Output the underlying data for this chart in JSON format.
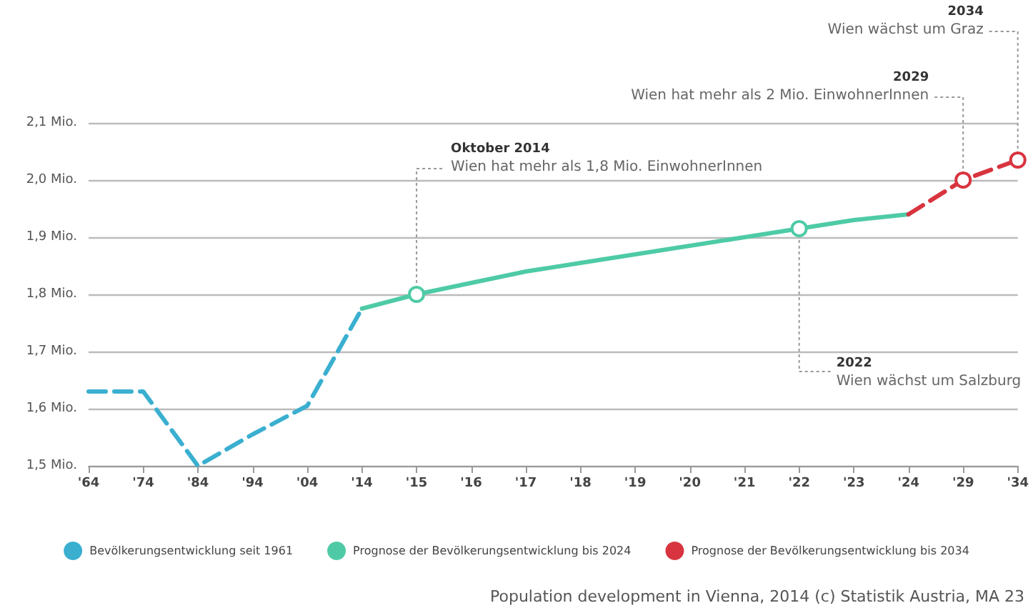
{
  "chart_data": {
    "type": "line",
    "categories": [
      "'64",
      "'74",
      "'84",
      "'94",
      "'04",
      "'14",
      "'15",
      "'16",
      "'17",
      "'18",
      "'19",
      "'20",
      "'21",
      "'22",
      "'23",
      "'24",
      "'29",
      "'34"
    ],
    "series": [
      {
        "name": "Bevölkerungsentwicklung seit 1961",
        "color": "#3aafd0",
        "line_style": "dashed",
        "values": [
          1.63,
          1.63,
          1.5,
          1.555,
          1.605,
          1.775,
          null,
          null,
          null,
          null,
          null,
          null,
          null,
          null,
          null,
          null,
          null,
          null
        ]
      },
      {
        "name": "Prognose der Bevölkerungsentwicklung bis 2024",
        "color": "#4ecba6",
        "line_style": "solid",
        "values": [
          null,
          null,
          null,
          null,
          null,
          1.775,
          1.8,
          1.82,
          1.84,
          1.855,
          1.87,
          1.885,
          1.9,
          1.915,
          1.93,
          1.94,
          null,
          null
        ]
      },
      {
        "name": "Prognose der Bevölkerungsentwicklung bis 2034",
        "color": "#d8343f",
        "line_style": "dashed",
        "values": [
          null,
          null,
          null,
          null,
          null,
          null,
          null,
          null,
          null,
          null,
          null,
          null,
          null,
          null,
          null,
          1.94,
          2.0,
          2.035
        ]
      }
    ],
    "ylim": [
      1.5,
      2.1
    ],
    "yticks": [
      {
        "value": 1.5,
        "label": "1,5 Mio."
      },
      {
        "value": 1.6,
        "label": "1,6 Mio."
      },
      {
        "value": 1.7,
        "label": "1,7 Mio."
      },
      {
        "value": 1.8,
        "label": "1,8 Mio."
      },
      {
        "value": 1.9,
        "label": "1,9 Mio."
      },
      {
        "value": 2.0,
        "label": "2,0 Mio."
      },
      {
        "value": 2.1,
        "label": "2,1 Mio."
      }
    ],
    "grid": "y",
    "legend": "bottom",
    "annotations": [
      {
        "text": "Oktober 2014\nWien hat mehr als 1,8 Mio. EinwohnerInnen",
        "x": "'15",
        "y": 1.8
      },
      {
        "text": "2022\nWien wächst um Salzburg",
        "x": "'22",
        "y": 1.915
      },
      {
        "text": "2029\nWien hat mehr als 2 Mio. EinwohnerInnen",
        "x": "'29",
        "y": 2.0
      },
      {
        "text": "2034\nWien wächst um Graz",
        "x": "'34",
        "y": 2.035
      },
      "Population development in Vienna, 2014 (c) Statistik Austria, MA 23"
    ]
  }
}
